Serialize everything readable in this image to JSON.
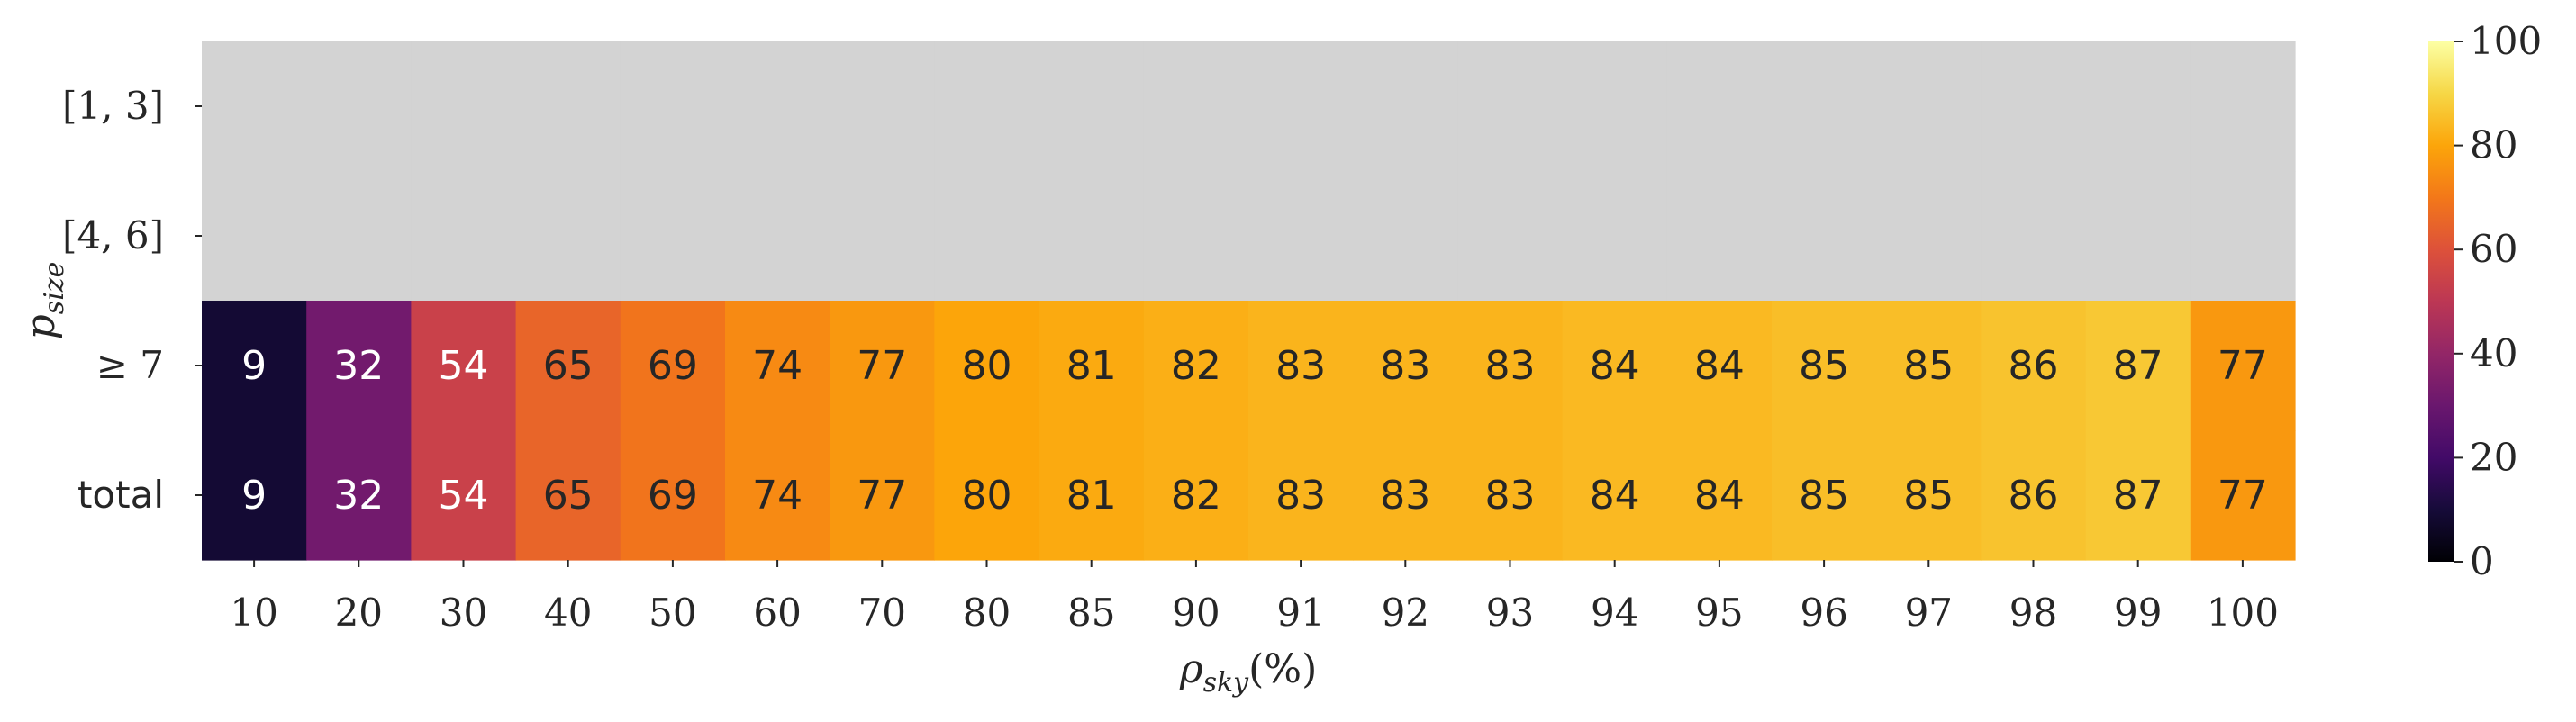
{
  "chart_data": {
    "type": "heatmap",
    "title": "",
    "xlabel": "ρ_sky(%)",
    "ylabel": "p_size",
    "x_categories": [
      "10",
      "20",
      "30",
      "40",
      "50",
      "60",
      "70",
      "80",
      "85",
      "90",
      "91",
      "92",
      "93",
      "94",
      "95",
      "96",
      "97",
      "98",
      "99",
      "100"
    ],
    "y_categories": [
      "[1, 3]",
      "[4, 6]",
      "≥ 7",
      "total"
    ],
    "values": [
      [
        null,
        null,
        null,
        null,
        null,
        null,
        null,
        null,
        null,
        null,
        null,
        null,
        null,
        null,
        null,
        null,
        null,
        null,
        null,
        null
      ],
      [
        null,
        null,
        null,
        null,
        null,
        null,
        null,
        null,
        null,
        null,
        null,
        null,
        null,
        null,
        null,
        null,
        null,
        null,
        null,
        null
      ],
      [
        9,
        32,
        54,
        65,
        69,
        74,
        77,
        80,
        81,
        82,
        83,
        83,
        83,
        84,
        84,
        85,
        85,
        86,
        87,
        77
      ],
      [
        9,
        32,
        54,
        65,
        69,
        74,
        77,
        80,
        81,
        82,
        83,
        83,
        83,
        84,
        84,
        85,
        85,
        86,
        87,
        77
      ]
    ],
    "missing_color": "#d3d3d3",
    "colormap": "inferno",
    "vmin": 0,
    "vmax": 100,
    "colorbar_ticks": [
      0,
      20,
      40,
      60,
      80,
      100
    ]
  }
}
